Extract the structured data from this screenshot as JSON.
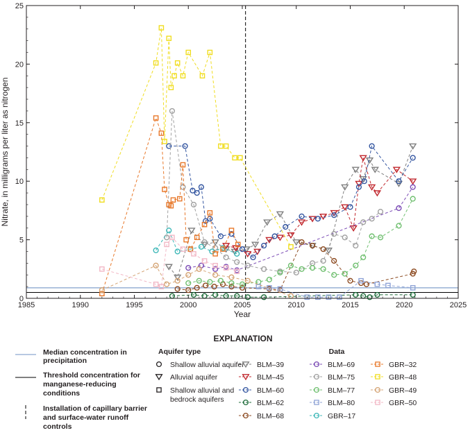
{
  "chart_data": {
    "type": "scatter",
    "xlabel": "Year",
    "ylabel": "Nitrate, in milligrams per liter as nitrogen",
    "xlim": [
      1985,
      2025
    ],
    "ylim": [
      0,
      25
    ],
    "xticks": [
      1985,
      1990,
      1995,
      2000,
      2005,
      2010,
      2015,
      2020,
      2025
    ],
    "yticks": [
      0,
      5,
      10,
      15,
      20,
      25
    ],
    "reference_lines": {
      "median_precipitation": 0.9,
      "manganese_threshold": 0.5,
      "capillary_barrier_year": 2005.3,
      "colors": {
        "median": "#9fb6d8",
        "threshold": "#000000",
        "barrier": "#000000"
      }
    },
    "series": [
      {
        "name": "BLM–39",
        "color": "#7f7f7f",
        "marker": "tri",
        "x": [
          1998.2,
          1999,
          2000.3,
          2001.5,
          2002.5,
          2003.5,
          2004.3,
          2005.4,
          2006.2,
          2007.3,
          2008.5,
          2010,
          2011.5,
          2013,
          2014.5,
          2015.5,
          2016.2,
          2016.8,
          2017.3,
          2019.5,
          2020.8
        ],
        "y": [
          2.7,
          1.8,
          5.8,
          4.6,
          4.8,
          4.2,
          4.0,
          4.2,
          4.6,
          6.5,
          7.2,
          4.8,
          4.5,
          4.1,
          9.5,
          11,
          10.2,
          11.8,
          11,
          9.8,
          13
        ]
      },
      {
        "name": "BLM–45",
        "color": "#c1272d",
        "marker": "tri",
        "x": [
          2003.5,
          2004.4,
          2005.5,
          2006.4,
          2007.5,
          2008.5,
          2009.5,
          2010.5,
          2011.5,
          2012.5,
          2013.5,
          2014.5,
          2015.3,
          2015.8,
          2016.2,
          2017,
          2017.5,
          2019.3,
          2020.8
        ],
        "y": [
          4.5,
          4.3,
          3.8,
          4.0,
          5.0,
          5.2,
          5.4,
          6.5,
          6.8,
          7.0,
          7.3,
          7.8,
          6.0,
          9.8,
          12,
          9.5,
          9.0,
          11,
          10
        ]
      },
      {
        "name": "BLM–60",
        "color": "#3355a0",
        "marker": "circle",
        "x": [
          1998.2,
          1999.7,
          2000.4,
          2000.8,
          2001.2,
          2001.6,
          2002,
          2003,
          2004,
          2005,
          2006,
          2007,
          2008,
          2009,
          2010.5,
          2012,
          2013.5,
          2015,
          2015.8,
          2016.3,
          2017,
          2019.5,
          2020.8
        ],
        "y": [
          13,
          13,
          9.2,
          9.0,
          9.5,
          6.6,
          6.8,
          5.3,
          5.5,
          4.2,
          3.5,
          4.5,
          5.3,
          6.1,
          7.0,
          6.8,
          7.1,
          7.8,
          9.5,
          10,
          13,
          10,
          12
        ]
      },
      {
        "name": "BLM–62",
        "color": "#1e6b3a",
        "marker": "circle",
        "x": [
          1998.5,
          2000.5,
          2001.5,
          2002.5,
          2003.5,
          2004.5,
          2005.5,
          2007,
          2015.5,
          2016.2,
          2016.8,
          2017.5,
          2020.8
        ],
        "y": [
          0.2,
          0.3,
          0.2,
          0.3,
          0.2,
          0.2,
          0.1,
          0.1,
          0.3,
          0.2,
          0.1,
          0.3,
          0.3
        ]
      },
      {
        "name": "BLM–68",
        "color": "#8c4a20",
        "marker": "circle",
        "x": [
          1999,
          2000,
          2000.8,
          2001.6,
          2002.4,
          2003.2,
          2004,
          2005,
          2007.5,
          2008.5,
          2010.5,
          2011.5,
          2012.5,
          2013.5,
          2015,
          2016,
          2016.5,
          2020.8,
          2020.9
        ],
        "y": [
          0.8,
          0.7,
          0.9,
          1.1,
          1.0,
          1.2,
          1.0,
          0.9,
          0.8,
          0.7,
          4.8,
          4.5,
          4.2,
          3.2,
          1.5,
          1.3,
          1.2,
          2.1,
          2.3
        ]
      },
      {
        "name": "BLM–69",
        "color": "#7b4bb5",
        "marker": "circle",
        "x": [
          2000,
          2001.2,
          2002.5,
          2003.5,
          2004.5,
          2019.5,
          2020.8
        ],
        "y": [
          2.6,
          2.8,
          2.5,
          2.7,
          2.4,
          7.7,
          9.5
        ]
      },
      {
        "name": "BLM–75",
        "color": "#a0a0a0",
        "marker": "circle",
        "x": [
          1998,
          1998.5,
          1999.5,
          2000.5,
          2001.5,
          2002.5,
          2003.5,
          2004.5,
          2005.5,
          2007,
          2008.5,
          2010,
          2011.5,
          2012.5,
          2013.5,
          2014.5,
          2015.5,
          2016.2,
          2017,
          2017.8
        ],
        "y": [
          5.2,
          16,
          9.5,
          8.0,
          4.8,
          4.3,
          3.5,
          3.1,
          2.8,
          2.5,
          2.3,
          2.2,
          3.0,
          3.2,
          5.5,
          5.2,
          4.5,
          6.5,
          6.8,
          7.4
        ]
      },
      {
        "name": "BLM–77",
        "color": "#6fbf6f",
        "marker": "circle",
        "x": [
          2000,
          2001,
          2002,
          2003,
          2004,
          2005,
          2006.5,
          2007.5,
          2008.5,
          2009.5,
          2010.5,
          2011.5,
          2012.5,
          2013.5,
          2014.5,
          2015.5,
          2016.2,
          2017,
          2017.8,
          2019.5,
          2020.8
        ],
        "y": [
          1.3,
          1.5,
          1.4,
          1.5,
          1.3,
          1.2,
          1.4,
          1.6,
          2.2,
          2.8,
          2.5,
          2.6,
          2.5,
          2.0,
          2.1,
          2.8,
          3.5,
          5.3,
          5.2,
          6.2,
          8.5
        ]
      },
      {
        "name": "BLM–80",
        "color": "#8fa3d6",
        "marker": "square",
        "x": [
          2006.5,
          2007.5,
          2008.5,
          2011,
          2012,
          2013,
          2014,
          2016,
          2017.5,
          2018.5,
          2020.8
        ],
        "y": [
          1.0,
          0.9,
          0.8,
          0.1,
          0.1,
          0.1,
          0.1,
          1.5,
          1.2,
          1.1,
          0.9
        ]
      },
      {
        "name": "GBR–17",
        "color": "#3db7b7",
        "marker": "circle",
        "x": [
          1997,
          1998.2,
          1999,
          2000.2,
          2001.2,
          2002.2,
          2003.2,
          2004.5
        ],
        "y": [
          4.1,
          5.8,
          4.0,
          4.2,
          4.4,
          4.0,
          4.3,
          3.8
        ]
      },
      {
        "name": "GBR–32",
        "color": "#e8782a",
        "marker": "square",
        "x": [
          1992,
          1997,
          1997.5,
          1997.8,
          1998.2,
          1998.4,
          1998.6,
          1999.2,
          1999.5,
          1999.8,
          2000.2,
          2000.8,
          2001.5,
          2002,
          2002.5,
          2003.2,
          2004,
          2004.6
        ],
        "y": [
          0.4,
          15.4,
          14.1,
          9.3,
          8.0,
          7.9,
          8.4,
          8.5,
          11.4,
          5.0,
          4.2,
          5.2,
          6.3,
          7.3,
          3.8,
          4.2,
          5.8,
          4.6
        ]
      },
      {
        "name": "GBR–48",
        "color": "#f0dd20",
        "marker": "square",
        "x": [
          1992,
          1997,
          1997.5,
          1997.8,
          1998.2,
          1998.4,
          1998.7,
          1999,
          1999.5,
          2000,
          2001.3,
          2002,
          2003,
          2003.5,
          2004.3,
          2004.8,
          2009.5
        ],
        "y": [
          8.4,
          20.1,
          23.1,
          13.4,
          22.2,
          18.0,
          19.0,
          20.1,
          19.0,
          21.0,
          19.0,
          21.0,
          13.0,
          13.0,
          12.0,
          12.0,
          4.4
        ]
      },
      {
        "name": "GBR–49",
        "color": "#d4a373",
        "marker": "circle",
        "x": [
          1992,
          1997,
          1998,
          1999,
          2000,
          2001,
          2002.5,
          2004,
          2005.5,
          2009.5
        ],
        "y": [
          0.7,
          2.8,
          1.2,
          1.5,
          2.0,
          2.5,
          2.0,
          1.8,
          1.5,
          0.2
        ]
      },
      {
        "name": "GBR–50",
        "color": "#f2b8c6",
        "marker": "square",
        "x": [
          1992,
          1997,
          1997.5,
          1998,
          1998.5,
          1999.5,
          2000.5,
          2001.5,
          2002.5,
          2003.5,
          2004.5
        ],
        "y": [
          2.5,
          1.2,
          1.0,
          4.6,
          5.2,
          4.2,
          3.8,
          3.2,
          2.8,
          2.6,
          2.3
        ]
      }
    ]
  },
  "explanation": {
    "heading": "EXPLANATION",
    "line_items": [
      {
        "label": "Median concentration in precipitation",
        "lines": [
          "Median concentration in",
          "precipitation"
        ]
      },
      {
        "label": "Threshold concentration for manganese-reducing conditions",
        "lines": [
          "Threshold concentration for",
          "manganese-reducing",
          "conditions"
        ]
      },
      {
        "label": "Installation of capillary barrier and surface-water runoff controls",
        "lines": [
          "Installation of capillary barrier",
          "and surface-water runoff",
          "controls"
        ]
      }
    ],
    "aquifer_type": {
      "title": "Aquifer type",
      "items": [
        {
          "label": "Shallow alluvial aquifer",
          "lines": [
            "Shallow alluvial aquifer"
          ],
          "marker": "circle"
        },
        {
          "label": "Alluvial aquifer",
          "lines": [
            "Alluvial aquifer"
          ],
          "marker": "tri"
        },
        {
          "label": "Shallow alluvial and bedrock aquifers",
          "lines": [
            "Shallow alluvial and",
            "bedrock aquifers"
          ],
          "marker": "square"
        }
      ]
    },
    "data_title": "Data"
  }
}
